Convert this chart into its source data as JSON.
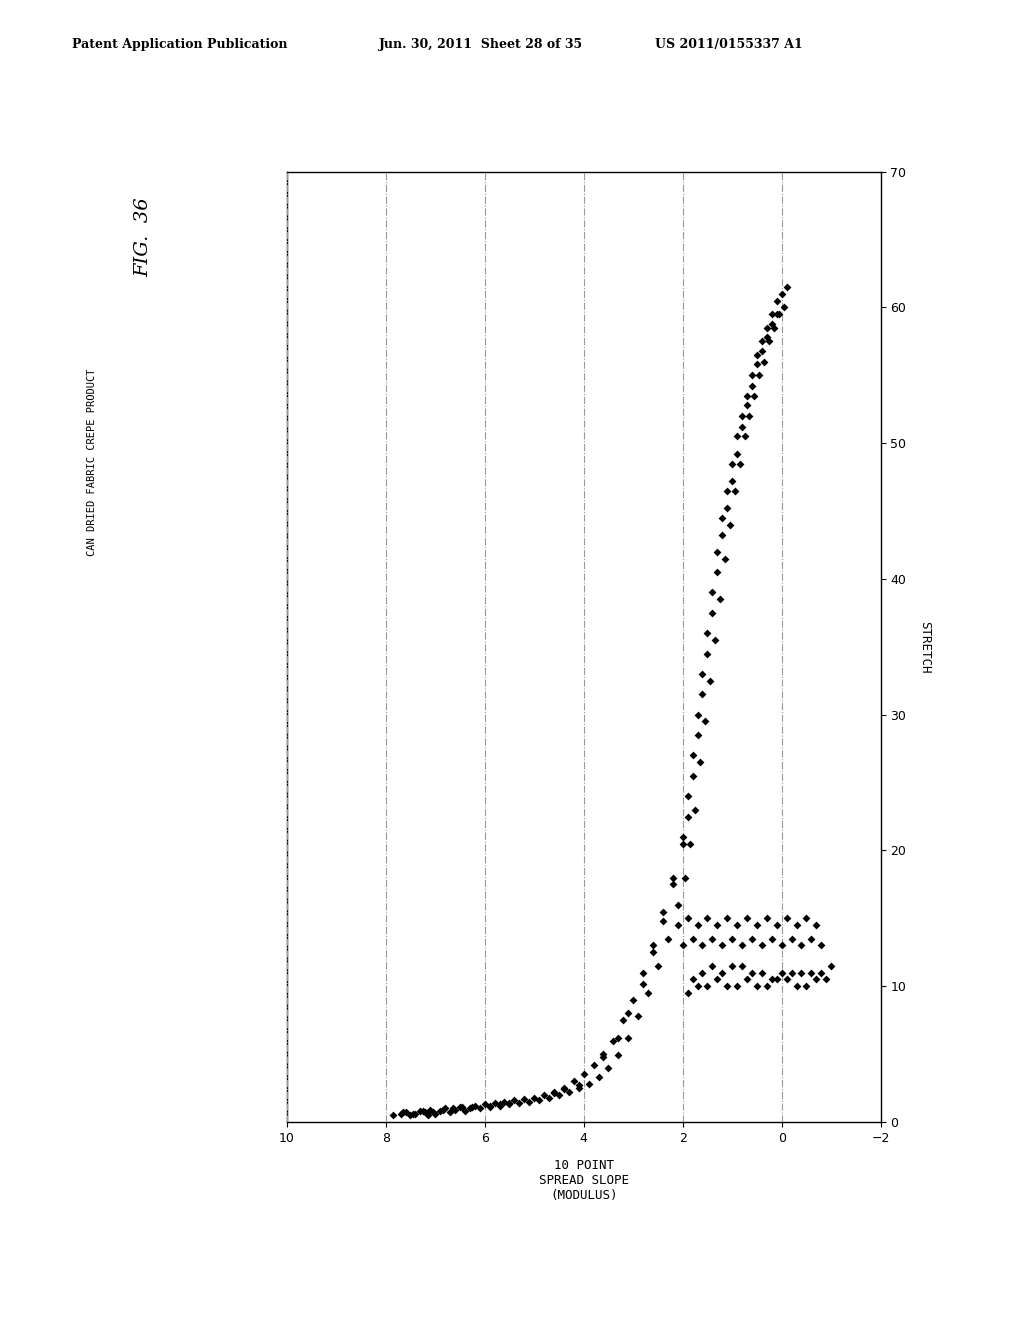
{
  "fig_title": "FIG.  36",
  "subtitle": "CAN DRIED FABRIC CREPE PRODUCT",
  "xlabel": "10 POINT\nSPREAD SLOPE\n(MODULUS)",
  "ylabel": "STRETCH",
  "xlim": [
    10,
    -2
  ],
  "ylim": [
    0,
    70
  ],
  "xticks": [
    10,
    8,
    6,
    4,
    2,
    0,
    -2
  ],
  "yticks": [
    0,
    10,
    20,
    30,
    40,
    50,
    60,
    70
  ],
  "header_left": "Patent Application Publication",
  "header_center": "Jun. 30, 2011  Sheet 28 of 35",
  "header_right": "US 2011/0155337 A1",
  "marker_color": "#000000",
  "marker_size": 16,
  "bg_color": "#ffffff",
  "grid_color": "#999999",
  "scatter_data": [
    [
      7.85,
      0.5
    ],
    [
      7.7,
      0.6
    ],
    [
      7.6,
      0.7
    ],
    [
      7.5,
      0.5
    ],
    [
      7.4,
      0.6
    ],
    [
      7.3,
      0.8
    ],
    [
      7.2,
      0.7
    ],
    [
      7.15,
      0.5
    ],
    [
      7.1,
      0.9
    ],
    [
      7.0,
      0.6
    ],
    [
      6.9,
      0.8
    ],
    [
      6.8,
      1.0
    ],
    [
      6.7,
      0.7
    ],
    [
      6.6,
      0.9
    ],
    [
      6.5,
      1.1
    ],
    [
      6.4,
      0.8
    ],
    [
      6.3,
      1.0
    ],
    [
      6.2,
      1.2
    ],
    [
      6.1,
      1.0
    ],
    [
      6.0,
      1.3
    ],
    [
      5.9,
      1.1
    ],
    [
      5.8,
      1.4
    ],
    [
      5.7,
      1.2
    ],
    [
      5.6,
      1.5
    ],
    [
      5.5,
      1.3
    ],
    [
      5.4,
      1.6
    ],
    [
      5.3,
      1.4
    ],
    [
      5.2,
      1.7
    ],
    [
      5.1,
      1.5
    ],
    [
      5.0,
      1.8
    ],
    [
      4.9,
      1.6
    ],
    [
      4.8,
      2.0
    ],
    [
      4.7,
      1.8
    ],
    [
      4.6,
      2.2
    ],
    [
      4.5,
      2.0
    ],
    [
      4.4,
      2.5
    ],
    [
      4.3,
      2.2
    ],
    [
      4.2,
      3.0
    ],
    [
      4.1,
      2.5
    ],
    [
      4.0,
      3.5
    ],
    [
      3.9,
      2.8
    ],
    [
      3.8,
      4.2
    ],
    [
      3.7,
      3.3
    ],
    [
      3.6,
      5.0
    ],
    [
      3.5,
      4.0
    ],
    [
      3.4,
      6.0
    ],
    [
      3.3,
      4.9
    ],
    [
      3.2,
      7.5
    ],
    [
      3.1,
      6.2
    ],
    [
      3.0,
      9.0
    ],
    [
      2.9,
      7.8
    ],
    [
      2.8,
      11.0
    ],
    [
      2.7,
      9.5
    ],
    [
      2.6,
      13.0
    ],
    [
      2.5,
      11.5
    ],
    [
      2.4,
      15.5
    ],
    [
      2.3,
      13.5
    ],
    [
      2.2,
      18.0
    ],
    [
      2.1,
      16.0
    ],
    [
      2.0,
      21.0
    ],
    [
      1.95,
      18.0
    ],
    [
      1.9,
      24.0
    ],
    [
      1.85,
      20.5
    ],
    [
      1.8,
      27.0
    ],
    [
      1.75,
      23.0
    ],
    [
      1.7,
      30.0
    ],
    [
      1.65,
      26.5
    ],
    [
      1.6,
      33.0
    ],
    [
      1.55,
      29.5
    ],
    [
      1.5,
      36.0
    ],
    [
      1.45,
      32.5
    ],
    [
      1.4,
      39.0
    ],
    [
      1.35,
      35.5
    ],
    [
      1.3,
      42.0
    ],
    [
      1.25,
      38.5
    ],
    [
      1.2,
      44.5
    ],
    [
      1.15,
      41.5
    ],
    [
      1.1,
      46.5
    ],
    [
      1.05,
      44.0
    ],
    [
      1.0,
      48.5
    ],
    [
      0.95,
      46.5
    ],
    [
      0.9,
      50.5
    ],
    [
      0.85,
      48.5
    ],
    [
      0.8,
      52.0
    ],
    [
      0.75,
      50.5
    ],
    [
      0.7,
      53.5
    ],
    [
      0.65,
      52.0
    ],
    [
      0.6,
      55.0
    ],
    [
      0.55,
      53.5
    ],
    [
      0.5,
      56.5
    ],
    [
      0.45,
      55.0
    ],
    [
      0.4,
      57.5
    ],
    [
      0.35,
      56.0
    ],
    [
      0.3,
      58.5
    ],
    [
      0.25,
      57.5
    ],
    [
      0.2,
      59.5
    ],
    [
      0.15,
      58.5
    ],
    [
      0.1,
      60.5
    ],
    [
      0.05,
      59.5
    ],
    [
      0.0,
      61.0
    ],
    [
      -0.05,
      60.0
    ],
    [
      -0.1,
      61.5
    ],
    [
      7.65,
      0.7
    ],
    [
      7.45,
      0.6
    ],
    [
      7.25,
      0.8
    ],
    [
      7.05,
      0.7
    ],
    [
      6.85,
      0.9
    ],
    [
      6.65,
      1.0
    ],
    [
      6.45,
      1.1
    ],
    [
      6.25,
      1.1
    ],
    [
      5.9,
      1.2
    ],
    [
      5.7,
      1.3
    ],
    [
      5.5,
      1.4
    ],
    [
      4.6,
      2.1
    ],
    [
      4.4,
      2.4
    ],
    [
      4.1,
      2.7
    ],
    [
      3.6,
      4.8
    ],
    [
      3.3,
      6.2
    ],
    [
      3.1,
      8.0
    ],
    [
      2.8,
      10.2
    ],
    [
      2.6,
      12.5
    ],
    [
      2.4,
      14.8
    ],
    [
      2.2,
      17.5
    ],
    [
      2.0,
      20.5
    ],
    [
      1.9,
      22.5
    ],
    [
      1.8,
      25.5
    ],
    [
      1.7,
      28.5
    ],
    [
      1.6,
      31.5
    ],
    [
      1.5,
      34.5
    ],
    [
      1.4,
      37.5
    ],
    [
      1.3,
      40.5
    ],
    [
      1.2,
      43.2
    ],
    [
      1.1,
      45.2
    ],
    [
      1.0,
      47.2
    ],
    [
      0.9,
      49.2
    ],
    [
      0.8,
      51.2
    ],
    [
      0.7,
      52.8
    ],
    [
      0.6,
      54.2
    ],
    [
      0.5,
      55.8
    ],
    [
      0.4,
      56.8
    ],
    [
      0.3,
      57.8
    ],
    [
      0.2,
      58.8
    ],
    [
      0.1,
      59.5
    ],
    [
      1.8,
      10.5
    ],
    [
      1.6,
      11.0
    ],
    [
      1.4,
      11.5
    ],
    [
      1.2,
      11.0
    ],
    [
      1.0,
      11.5
    ],
    [
      0.8,
      11.5
    ],
    [
      0.6,
      11.0
    ],
    [
      0.4,
      11.0
    ],
    [
      0.2,
      10.5
    ],
    [
      0.0,
      11.0
    ],
    [
      -0.2,
      11.0
    ],
    [
      -0.4,
      11.0
    ],
    [
      -0.6,
      11.0
    ],
    [
      -0.8,
      11.0
    ],
    [
      -1.0,
      11.5
    ],
    [
      1.9,
      9.5
    ],
    [
      1.7,
      10.0
    ],
    [
      1.5,
      10.0
    ],
    [
      1.3,
      10.5
    ],
    [
      1.1,
      10.0
    ],
    [
      0.9,
      10.0
    ],
    [
      0.7,
      10.5
    ],
    [
      0.5,
      10.0
    ],
    [
      0.3,
      10.0
    ],
    [
      0.1,
      10.5
    ],
    [
      -0.1,
      10.5
    ],
    [
      -0.3,
      10.0
    ],
    [
      -0.5,
      10.0
    ],
    [
      -0.7,
      10.5
    ],
    [
      -0.9,
      10.5
    ],
    [
      2.0,
      13.0
    ],
    [
      1.8,
      13.5
    ],
    [
      1.6,
      13.0
    ],
    [
      1.4,
      13.5
    ],
    [
      1.2,
      13.0
    ],
    [
      1.0,
      13.5
    ],
    [
      0.8,
      13.0
    ],
    [
      0.6,
      13.5
    ],
    [
      0.4,
      13.0
    ],
    [
      0.2,
      13.5
    ],
    [
      0.0,
      13.0
    ],
    [
      -0.2,
      13.5
    ],
    [
      -0.4,
      13.0
    ],
    [
      -0.6,
      13.5
    ],
    [
      -0.8,
      13.0
    ],
    [
      2.1,
      14.5
    ],
    [
      1.9,
      15.0
    ],
    [
      1.7,
      14.5
    ],
    [
      1.5,
      15.0
    ],
    [
      1.3,
      14.5
    ],
    [
      1.1,
      15.0
    ],
    [
      0.9,
      14.5
    ],
    [
      0.7,
      15.0
    ],
    [
      0.5,
      14.5
    ],
    [
      0.3,
      15.0
    ],
    [
      0.1,
      14.5
    ],
    [
      -0.1,
      15.0
    ],
    [
      -0.3,
      14.5
    ],
    [
      -0.5,
      15.0
    ],
    [
      -0.7,
      14.5
    ]
  ]
}
